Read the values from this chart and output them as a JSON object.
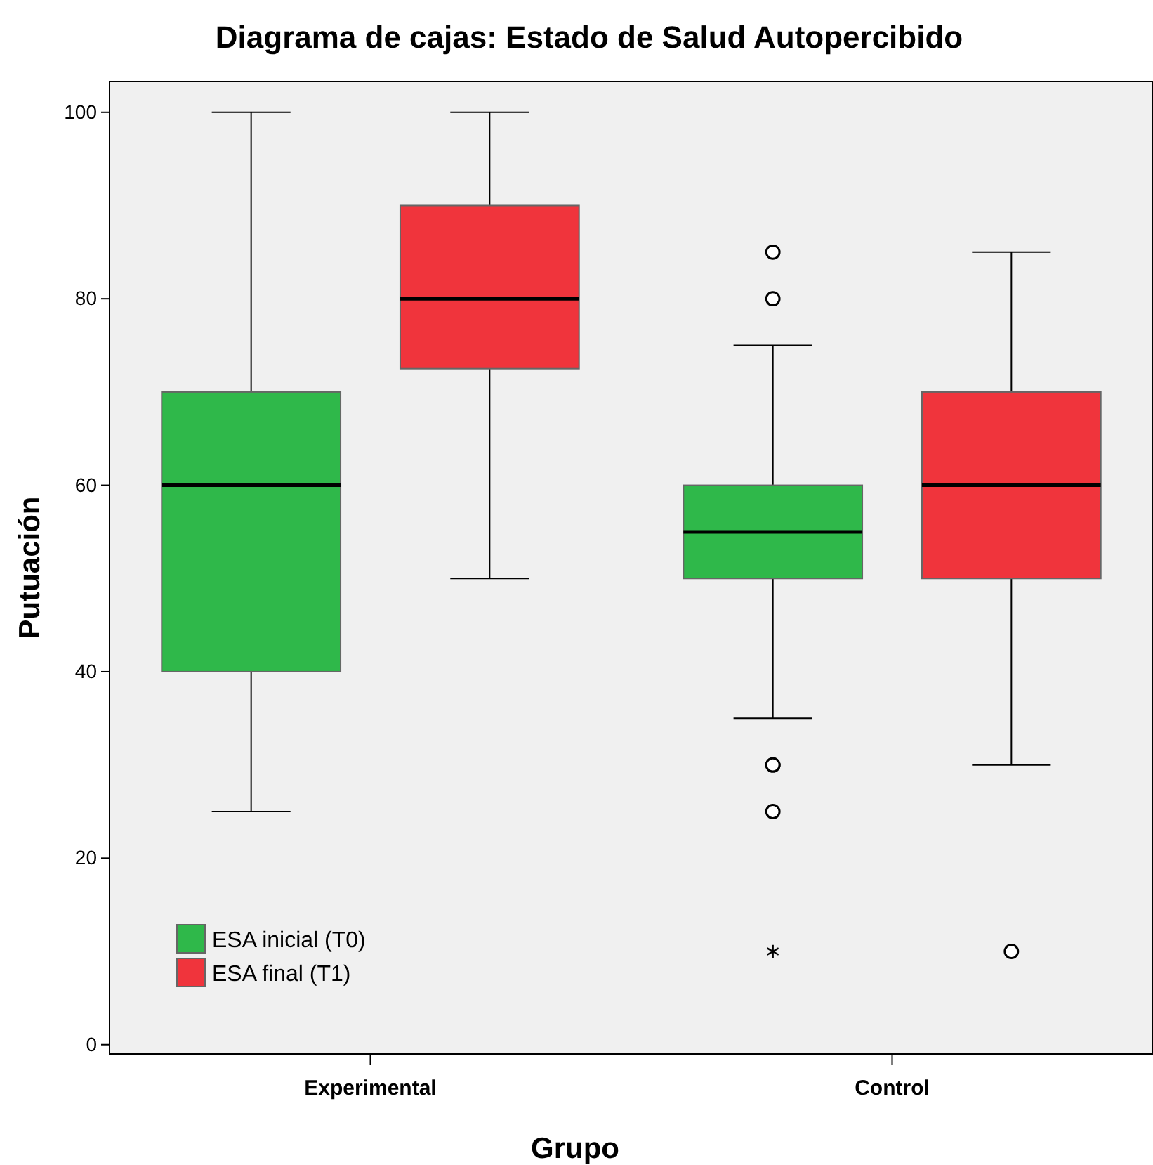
{
  "chart_data": {
    "type": "box",
    "title": "Diagrama de cajas: Estado de Salud Autopercibido",
    "xlabel": "Grupo",
    "ylabel": "Putuación",
    "categories": [
      "Experimental",
      "Control"
    ],
    "series": [
      {
        "name": "ESA inicial (T0)",
        "color": "#2fb84a",
        "boxes": [
          {
            "low": 25,
            "q1": 40,
            "median": 60,
            "q3": 70,
            "high": 100
          },
          {
            "low": 35,
            "q1": 50,
            "median": 55,
            "q3": 60,
            "high": 75,
            "outliers": [
              85,
              80,
              30,
              30,
              25,
              10
            ]
          }
        ]
      },
      {
        "name": "ESA final (T1)",
        "color": "#f0343c",
        "boxes": [
          {
            "low": 50,
            "q1": 72.5,
            "median": 80,
            "q3": 90,
            "high": 100
          },
          {
            "low": 30,
            "q1": 50,
            "median": 60,
            "q3": 70,
            "high": 85,
            "outliers": [
              10
            ]
          }
        ]
      }
    ],
    "ylim": [
      -1,
      103.3
    ],
    "yticks": [
      0,
      20,
      40,
      60,
      80,
      100
    ],
    "grid": false,
    "legend": "bottom left"
  }
}
